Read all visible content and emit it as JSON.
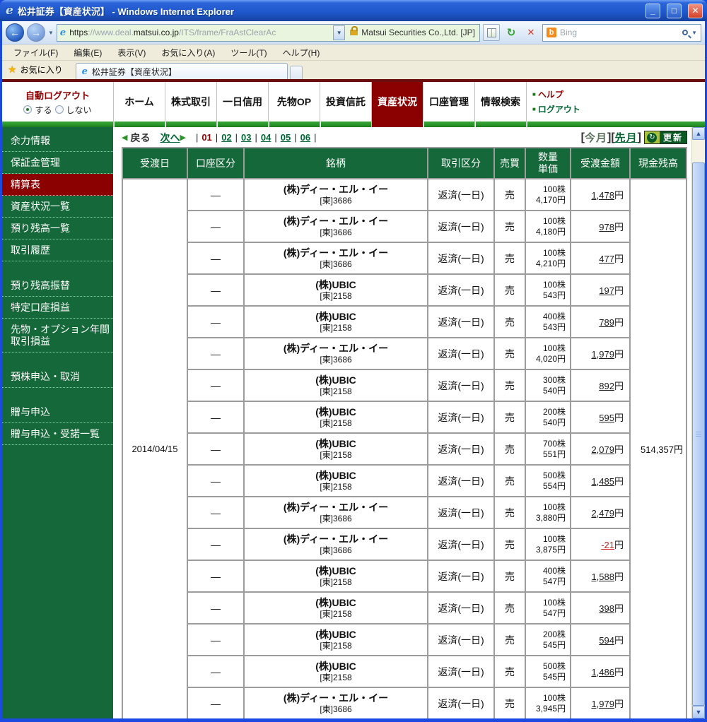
{
  "window": {
    "title": "松井証券【資産状況】 - Windows Internet Explorer"
  },
  "browser": {
    "url_scheme": "https",
    "url_mid": "://www.deal.",
    "url_host": "matsui.co.jp",
    "url_path": "/ITS/frame/FraAstClearAc",
    "certificate": "Matsui Securities Co.,Ltd. [JP]",
    "search_placeholder": "Bing",
    "menus": [
      "ファイル(F)",
      "編集(E)",
      "表示(V)",
      "お気に入り(A)",
      "ツール(T)",
      "ヘルプ(H)"
    ],
    "favorites_label": "お気に入り",
    "tab_title": "松井証券【資産状況】"
  },
  "nav": {
    "auto_logout": "自動ログアウト",
    "radio_yes": "する",
    "radio_no": "しない",
    "tabs": [
      {
        "label": "ホーム"
      },
      {
        "label": "株式取引"
      },
      {
        "label": "一日信用"
      },
      {
        "label": "先物OP"
      },
      {
        "label": "投資信託"
      },
      {
        "label": "資産状況",
        "active": true
      },
      {
        "label": "口座管理"
      },
      {
        "label": "情報検索"
      }
    ],
    "help": "ヘルプ",
    "logout": "ログアウト"
  },
  "sidebar": [
    {
      "label": "余力情報"
    },
    {
      "label": "保証金管理"
    },
    {
      "label": "精算表",
      "active": true
    },
    {
      "label": "資産状況一覧"
    },
    {
      "label": "預り残高一覧"
    },
    {
      "label": "取引履歴",
      "gap": true
    },
    {
      "label": "預り残高振替"
    },
    {
      "label": "特定口座損益"
    },
    {
      "label": "先物・オプション年間取引損益",
      "gap": true
    },
    {
      "label": "預株申込・取消",
      "gap": true
    },
    {
      "label": "贈与申込"
    },
    {
      "label": "贈与申込・受諾一覧"
    }
  ],
  "pager": {
    "back": "戻る",
    "next": "次へ",
    "pages": [
      "01",
      "02",
      "03",
      "04",
      "05",
      "06"
    ],
    "current": "01",
    "this_month": "今月",
    "last_month": "先月",
    "refresh": "更新"
  },
  "table": {
    "headers": [
      "受渡日",
      "口座区分",
      "銘柄",
      "取引区分",
      "売買",
      "数量\n単価",
      "受渡金額",
      "現金残高"
    ],
    "settlement_date": "2014/04/15",
    "cash_balance": "514,357円",
    "yen_suffix": "円",
    "rows": [
      {
        "account": "―",
        "name": "(株)ディー・エル・イー",
        "code": "[東]3686",
        "deal": "返済(一日)",
        "side": "売",
        "qty": "100株",
        "price": "4,170円",
        "amount": "1,478",
        "negative": false
      },
      {
        "account": "―",
        "name": "(株)ディー・エル・イー",
        "code": "[東]3686",
        "deal": "返済(一日)",
        "side": "売",
        "qty": "100株",
        "price": "4,180円",
        "amount": "978",
        "negative": false
      },
      {
        "account": "―",
        "name": "(株)ディー・エル・イー",
        "code": "[東]3686",
        "deal": "返済(一日)",
        "side": "売",
        "qty": "100株",
        "price": "4,210円",
        "amount": "477",
        "negative": false
      },
      {
        "account": "―",
        "name": "(株)UBIC",
        "code": "[東]2158",
        "deal": "返済(一日)",
        "side": "売",
        "qty": "100株",
        "price": "543円",
        "amount": "197",
        "negative": false
      },
      {
        "account": "―",
        "name": "(株)UBIC",
        "code": "[東]2158",
        "deal": "返済(一日)",
        "side": "売",
        "qty": "400株",
        "price": "543円",
        "amount": "789",
        "negative": false
      },
      {
        "account": "―",
        "name": "(株)ディー・エル・イー",
        "code": "[東]3686",
        "deal": "返済(一日)",
        "side": "売",
        "qty": "100株",
        "price": "4,020円",
        "amount": "1,979",
        "negative": false
      },
      {
        "account": "―",
        "name": "(株)UBIC",
        "code": "[東]2158",
        "deal": "返済(一日)",
        "side": "売",
        "qty": "300株",
        "price": "540円",
        "amount": "892",
        "negative": false
      },
      {
        "account": "―",
        "name": "(株)UBIC",
        "code": "[東]2158",
        "deal": "返済(一日)",
        "side": "売",
        "qty": "200株",
        "price": "540円",
        "amount": "595",
        "negative": false
      },
      {
        "account": "―",
        "name": "(株)UBIC",
        "code": "[東]2158",
        "deal": "返済(一日)",
        "side": "売",
        "qty": "700株",
        "price": "551円",
        "amount": "2,079",
        "negative": false
      },
      {
        "account": "―",
        "name": "(株)UBIC",
        "code": "[東]2158",
        "deal": "返済(一日)",
        "side": "売",
        "qty": "500株",
        "price": "554円",
        "amount": "1,485",
        "negative": false
      },
      {
        "account": "―",
        "name": "(株)ディー・エル・イー",
        "code": "[東]3686",
        "deal": "返済(一日)",
        "side": "売",
        "qty": "100株",
        "price": "3,880円",
        "amount": "2,479",
        "negative": false
      },
      {
        "account": "―",
        "name": "(株)ディー・エル・イー",
        "code": "[東]3686",
        "deal": "返済(一日)",
        "side": "売",
        "qty": "100株",
        "price": "3,875円",
        "amount": "-21",
        "negative": true
      },
      {
        "account": "―",
        "name": "(株)UBIC",
        "code": "[東]2158",
        "deal": "返済(一日)",
        "side": "売",
        "qty": "400株",
        "price": "547円",
        "amount": "1,588",
        "negative": false
      },
      {
        "account": "―",
        "name": "(株)UBIC",
        "code": "[東]2158",
        "deal": "返済(一日)",
        "side": "売",
        "qty": "100株",
        "price": "547円",
        "amount": "398",
        "negative": false
      },
      {
        "account": "―",
        "name": "(株)UBIC",
        "code": "[東]2158",
        "deal": "返済(一日)",
        "side": "売",
        "qty": "200株",
        "price": "545円",
        "amount": "594",
        "negative": false
      },
      {
        "account": "―",
        "name": "(株)UBIC",
        "code": "[東]2158",
        "deal": "返済(一日)",
        "side": "売",
        "qty": "500株",
        "price": "545円",
        "amount": "1,486",
        "negative": false
      },
      {
        "account": "―",
        "name": "(株)ディー・エル・イー",
        "code": "[東]3686",
        "deal": "返済(一日)",
        "side": "売",
        "qty": "100株",
        "price": "3,945円",
        "amount": "1,979",
        "negative": false
      }
    ]
  },
  "colors": {
    "brand_green": "#156839",
    "accent_maroon": "#8b0000",
    "link_green": "#006633",
    "negative_red": "#cc2222"
  }
}
